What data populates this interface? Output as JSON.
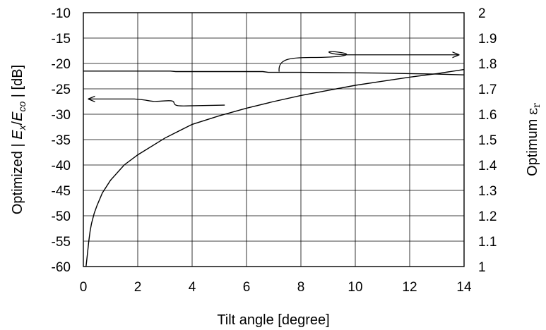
{
  "chart_data": {
    "type": "line",
    "title": "",
    "xlabel": "Tilt angle [degree]",
    "ylabel_left": {
      "prefix": "Optimized | ",
      "e1": "E",
      "s1": "x",
      "slash": "/",
      "e2": "E",
      "s2": "co",
      "suffix": " | [dB]"
    },
    "ylabel_right": {
      "word": "Optimum ",
      "symbol": "ε",
      "sub": "r"
    },
    "xlim": [
      0,
      14
    ],
    "ylim_left": [
      -60,
      -10
    ],
    "ylim_right": [
      1,
      2
    ],
    "x_ticks": [
      "0",
      "2",
      "4",
      "6",
      "8",
      "10",
      "12",
      "14"
    ],
    "y_left_ticks": [
      "-10",
      "-15",
      "-20",
      "-25",
      "-30",
      "-35",
      "-40",
      "-45",
      "-50",
      "-55",
      "-60"
    ],
    "y_right_ticks": [
      "2",
      "1.9",
      "1.8",
      "1.7",
      "1.6",
      "1.5",
      "1.4",
      "1.3",
      "1.2",
      "1.1",
      "1"
    ],
    "grid": true,
    "series": [
      {
        "axis": "left",
        "x": [
          0.1,
          0.15,
          0.2,
          0.25,
          0.3,
          0.4,
          0.5,
          0.7,
          1,
          1.5,
          2,
          3,
          4,
          5,
          6,
          7,
          8,
          9,
          10,
          11,
          12,
          13,
          14
        ],
        "y": [
          -60,
          -57.5,
          -55,
          -53,
          -51.5,
          -49.5,
          -48,
          -45.5,
          -43,
          -40,
          -38,
          -34.7,
          -32,
          -30.3,
          -28.8,
          -27.5,
          -26.3,
          -25.3,
          -24.3,
          -23.5,
          -22.7,
          -22,
          -21.2
        ]
      },
      {
        "axis": "right",
        "x": [
          0,
          1,
          2,
          3,
          3.2,
          3.4,
          4,
          5,
          6,
          6.6,
          6.8,
          7,
          8,
          9,
          10,
          11,
          12,
          13,
          14
        ],
        "y": [
          1.77,
          1.77,
          1.77,
          1.77,
          1.77,
          1.768,
          1.768,
          1.768,
          1.768,
          1.768,
          1.765,
          1.765,
          1.765,
          1.764,
          1.763,
          1.762,
          1.76,
          1.758,
          1.755
        ]
      }
    ],
    "annotations": [
      {
        "points_to": "left",
        "from": [
          5.2,
          -28.2
        ],
        "to": [
          0.2,
          -27
        ]
      },
      {
        "points_to": "right",
        "from": [
          7.2,
          -21.6
        ],
        "to": [
          13.8,
          -18.3
        ]
      }
    ]
  }
}
